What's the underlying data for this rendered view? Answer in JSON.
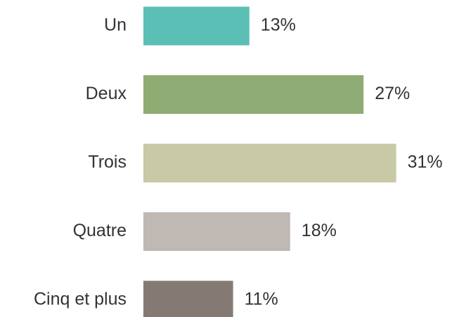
{
  "chart_data": {
    "type": "bar",
    "orientation": "horizontal",
    "categories": [
      "Un",
      "Deux",
      "Trois",
      "Quatre",
      "Cinq et plus"
    ],
    "values": [
      13,
      27,
      31,
      18,
      11
    ],
    "value_labels": [
      "13%",
      "27%",
      "31%",
      "18%",
      "11%"
    ],
    "colors": [
      "#5bbfb5",
      "#8fac74",
      "#c8c9a5",
      "#c0b8b3",
      "#847a73"
    ]
  }
}
